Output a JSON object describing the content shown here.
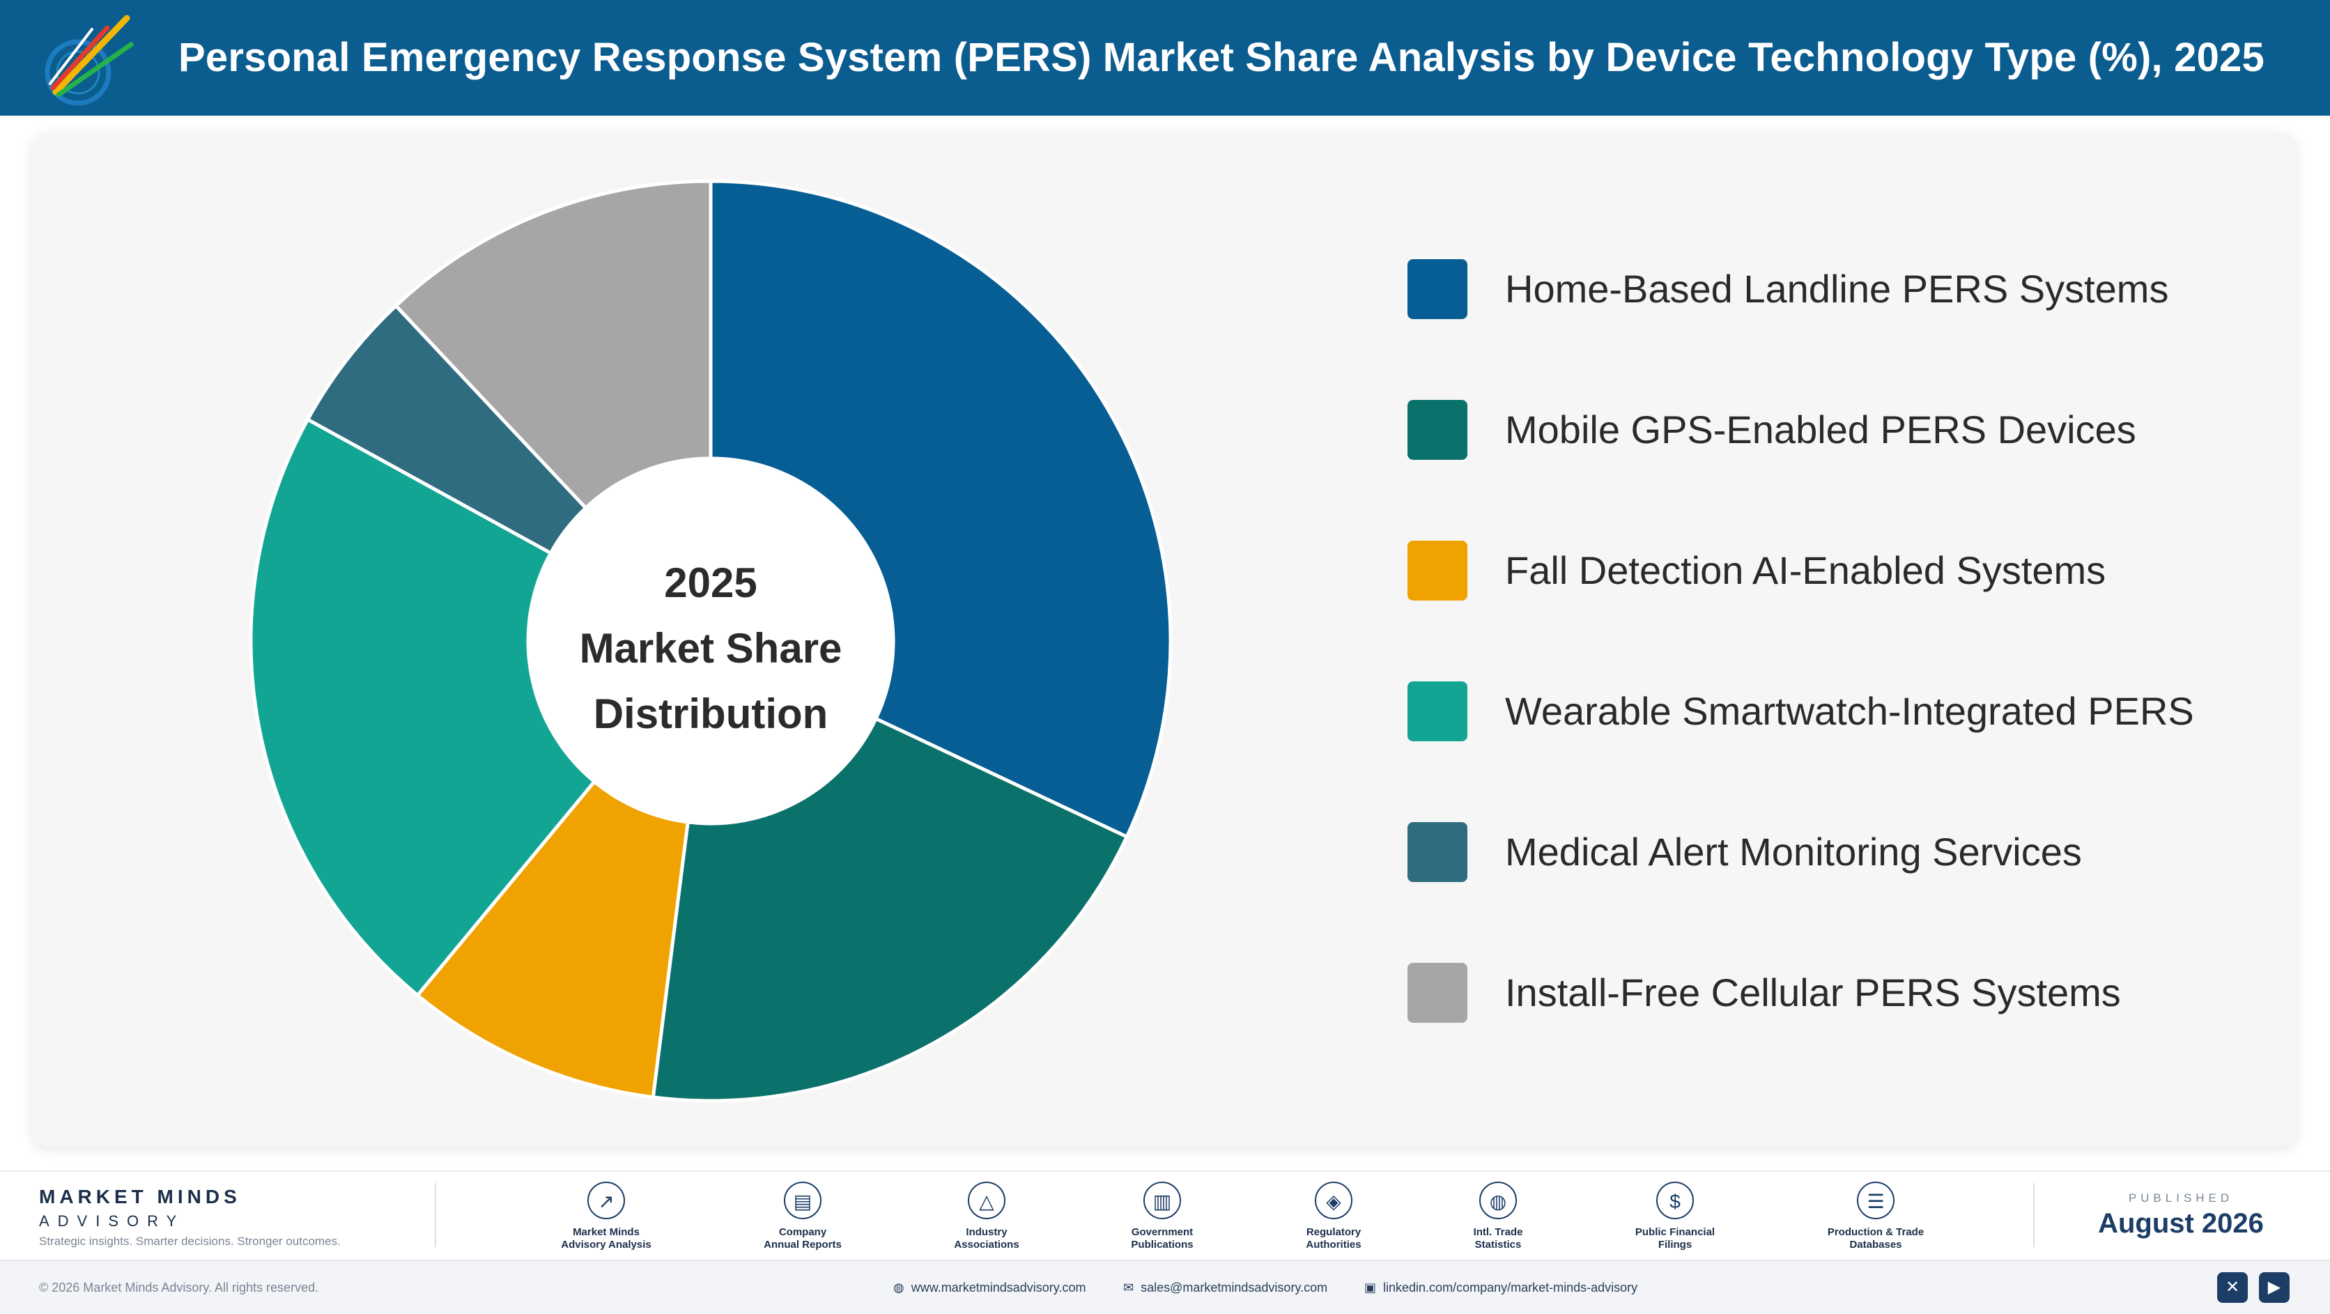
{
  "header": {
    "title": "Personal Emergency Response System (PERS) Market Share Analysis by Device Technology Type (%), 2025",
    "logo_icon": "pen-burst-logo-icon"
  },
  "chart_data": {
    "type": "pie",
    "style": "donut",
    "title": "Personal Emergency Response System (PERS) Market Share Analysis by Device Technology Type (%), 2025",
    "center_label": [
      "2025",
      "Market Share",
      "Distribution"
    ],
    "categories": [
      "Home-Based Landline PERS Systems",
      "Mobile GPS-Enabled PERS Devices",
      "Fall Detection AI-Enabled Systems",
      "Wearable Smartwatch-Integrated PERS",
      "Medical Alert Monitoring Services",
      "Install-Free Cellular PERS Systems"
    ],
    "values": [
      32,
      20,
      9,
      22,
      5,
      12
    ],
    "colors": [
      "#065e94",
      "#0b726b",
      "#f0a200",
      "#13a594",
      "#2f6c80",
      "#a6a6a6"
    ],
    "legend_position": "right",
    "start_angle_deg": 0,
    "direction": "clockwise"
  },
  "footer": {
    "brand_name": "MARKET MINDS",
    "brand_sub": "ADVISORY",
    "brand_tagline": "Strategic insights. Smarter decisions. Stronger outcomes.",
    "sources": [
      {
        "line1": "Market Minds",
        "line2": "Advisory Analysis",
        "icon": "trend-line-icon",
        "glyph": "↗"
      },
      {
        "line1": "Company",
        "line2": "Annual Reports",
        "icon": "document-icon",
        "glyph": "▤"
      },
      {
        "line1": "Industry",
        "line2": "Associations",
        "icon": "network-icon",
        "glyph": "△"
      },
      {
        "line1": "Government",
        "line2": "Publications",
        "icon": "building-icon",
        "glyph": "▥"
      },
      {
        "line1": "Regulatory",
        "line2": "Authorities",
        "icon": "shield-icon",
        "glyph": "◈"
      },
      {
        "line1": "Intl. Trade",
        "line2": "Statistics",
        "icon": "globe-icon",
        "glyph": "◍"
      },
      {
        "line1": "Public Financial",
        "line2": "Filings",
        "icon": "coin-icon",
        "glyph": "$"
      },
      {
        "line1": "Production & Trade",
        "line2": "Databases",
        "icon": "database-icon",
        "glyph": "☰"
      }
    ],
    "published_label": "PUBLISHED",
    "published_date": "August 2026",
    "copyright": "© 2026 Market Minds Advisory. All rights reserved.",
    "website": "www.marketmindsadvisory.com",
    "email": "sales@marketmindsadvisory.com",
    "linkedin": "linkedin.com/company/market-minds-advisory"
  }
}
